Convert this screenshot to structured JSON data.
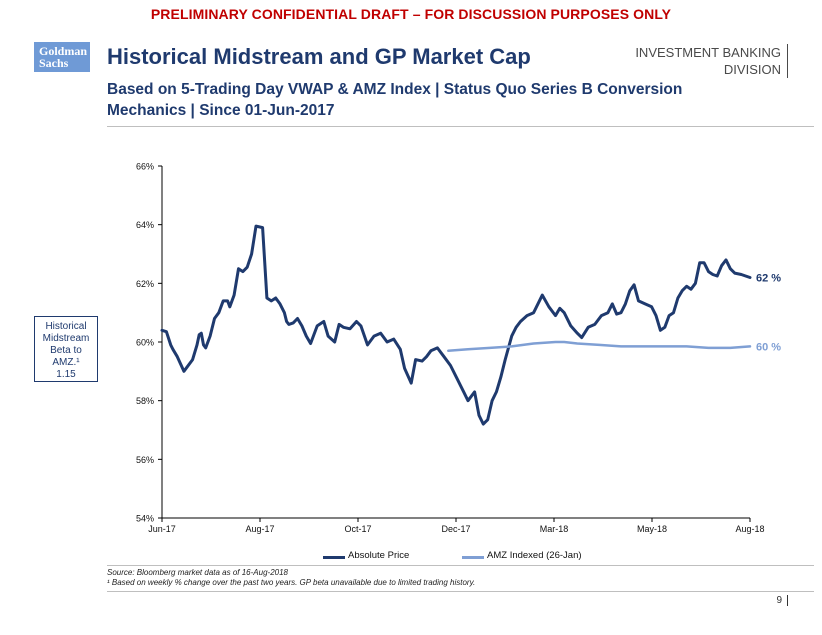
{
  "banner": "PRELIMINARY CONFIDENTIAL DRAFT – FOR DISCUSSION PURPOSES ONLY",
  "logo": {
    "line1": "Goldman",
    "line2": "Sachs"
  },
  "division": {
    "line1": "INVESTMENT BANKING",
    "line2": "DIVISION"
  },
  "title": "Historical Midstream and GP Market Cap",
  "subtitle": "Based on 5-Trading Day VWAP & AMZ Index | Status Quo Series B Conversion Mechanics | Since 01-Jun-2017",
  "beta_box": {
    "line1": "Historical",
    "line2": "Midstream",
    "line3": "Beta to",
    "line4": "AMZ.¹",
    "line5": "1.15"
  },
  "source": {
    "line1": "Source: Bloomberg market data as of 16-Aug-2018",
    "line2": "¹ Based on weekly % change over the past two years. GP beta unavailable due to limited trading history."
  },
  "page_number": "9",
  "colors": {
    "absolute": "#1f3a6e",
    "amz": "#7f9fd4",
    "title": "#1f3a6e",
    "banner": "#c00000"
  },
  "chart_data": {
    "type": "line",
    "title": "",
    "xlabel": "",
    "ylabel": "",
    "ylim": [
      54,
      66
    ],
    "yticks": [
      54,
      56,
      58,
      60,
      62,
      64,
      66
    ],
    "ytick_labels": [
      "54%",
      "56%",
      "58%",
      "60%",
      "62%",
      "64%",
      "66%"
    ],
    "xticks": [
      0,
      2,
      4,
      6,
      8,
      10,
      12
    ],
    "xtick_labels": [
      "Jun-17",
      "Aug-17",
      "Oct-17",
      "Dec-17",
      "Mar-18",
      "May-18",
      "Aug-18"
    ],
    "xlim": [
      0,
      14.5
    ],
    "legend_position": "bottom",
    "series": [
      {
        "name": "Absolute Price",
        "color": "#1f3a6e",
        "end_label": "62 %",
        "x": [
          0,
          0.1,
          0.2,
          0.25,
          0.35,
          0.5,
          0.7,
          0.8,
          0.85,
          0.9,
          0.95,
          1.0,
          1.1,
          1.2,
          1.3,
          1.4,
          1.5,
          1.55,
          1.65,
          1.75,
          1.85,
          1.95,
          2.05,
          2.15,
          2.3,
          2.4,
          2.5,
          2.6,
          2.7,
          2.8,
          2.85,
          2.9,
          3.0,
          3.1,
          3.2,
          3.3,
          3.4,
          3.55,
          3.7,
          3.8,
          3.95,
          4.05,
          4.15,
          4.3,
          4.45,
          4.55,
          4.7,
          4.85,
          5.0,
          5.15,
          5.3,
          5.45,
          5.55,
          5.7,
          5.8,
          5.95,
          6.05,
          6.15,
          6.3,
          6.45,
          6.6,
          6.75,
          6.9,
          7.0,
          7.15,
          7.25,
          7.35,
          7.45,
          7.55,
          7.65,
          7.75,
          7.85,
          8.0,
          8.1,
          8.2,
          8.35,
          8.5,
          8.7,
          8.85,
          9.0,
          9.1,
          9.2,
          9.35,
          9.5,
          9.6,
          9.75,
          9.9,
          10.05,
          10.2,
          10.3,
          10.4,
          10.5,
          10.6,
          10.7,
          10.8,
          10.9,
          11.05,
          11.2,
          11.3,
          11.4,
          11.5,
          11.6,
          11.7,
          11.8,
          11.9,
          12.0,
          12.1,
          12.2,
          12.3,
          12.4,
          12.5,
          12.6,
          12.7,
          12.8,
          12.9,
          13.0,
          13.1,
          13.25,
          13.35,
          13.45
        ],
        "y": [
          60.4,
          60.35,
          59.9,
          59.75,
          59.5,
          59.0,
          59.4,
          59.9,
          60.25,
          60.3,
          59.9,
          59.8,
          60.2,
          60.8,
          61.0,
          61.4,
          61.4,
          61.2,
          61.6,
          62.5,
          62.4,
          62.55,
          63.0,
          63.95,
          63.9,
          61.5,
          61.4,
          61.5,
          61.3,
          61.0,
          60.7,
          60.6,
          60.65,
          60.8,
          60.55,
          60.2,
          59.95,
          60.55,
          60.7,
          60.2,
          60.0,
          60.6,
          60.5,
          60.45,
          60.7,
          60.55,
          59.9,
          60.2,
          60.3,
          60.0,
          60.1,
          59.75,
          59.1,
          58.6,
          59.4,
          59.35,
          59.5,
          59.7,
          59.8,
          59.5,
          59.2,
          58.75,
          58.3,
          58.0,
          58.3,
          57.5,
          57.2,
          57.35,
          58.0,
          58.3,
          58.8,
          59.4,
          60.2,
          60.5,
          60.7,
          60.9,
          61.0,
          61.6,
          61.2,
          60.9,
          61.15,
          61.0,
          60.55,
          60.3,
          60.15,
          60.5,
          60.6,
          60.9,
          61.0,
          61.3,
          60.95,
          61.0,
          61.3,
          61.75,
          61.95,
          61.4,
          61.3,
          61.2,
          60.9,
          60.4,
          60.5,
          60.9,
          61.0,
          61.5,
          61.75,
          61.9,
          61.8,
          62.0,
          62.7,
          62.7,
          62.4,
          62.3,
          62.25,
          62.6,
          62.8,
          62.5,
          62.35,
          62.3,
          62.25,
          62.2
        ]
      },
      {
        "name": "AMZ Indexed (26-Jan)",
        "color": "#7f9fd4",
        "end_label": "60 %",
        "x": [
          6.55,
          7.0,
          7.5,
          8.0,
          8.5,
          9.0,
          9.2,
          9.5,
          10.0,
          10.5,
          11.0,
          11.5,
          12.0,
          12.5,
          13.0,
          13.45
        ],
        "y": [
          59.7,
          59.75,
          59.8,
          59.85,
          59.95,
          60.0,
          60.0,
          59.95,
          59.9,
          59.85,
          59.85,
          59.85,
          59.85,
          59.8,
          59.8,
          59.85
        ]
      }
    ]
  }
}
